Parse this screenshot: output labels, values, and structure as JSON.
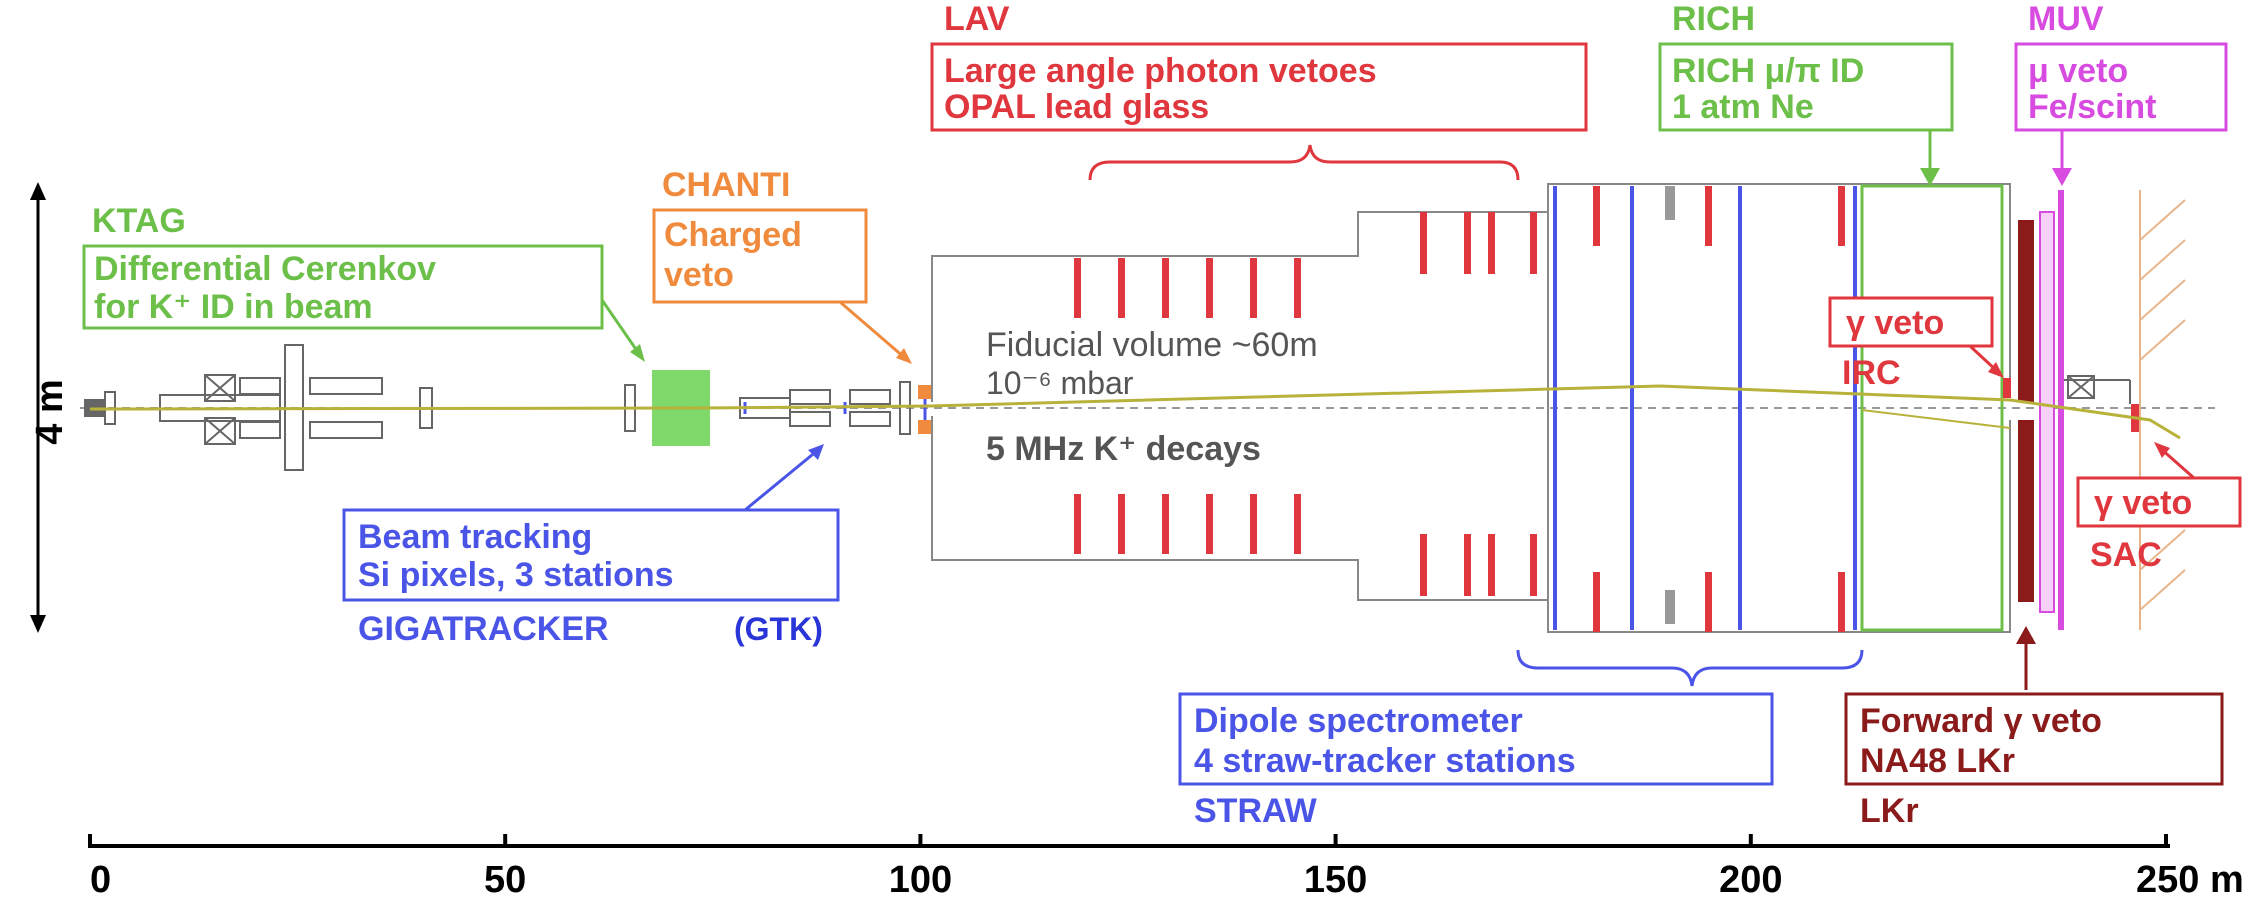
{
  "colors": {
    "green": "#6cc04a",
    "orange": "#f08a3c",
    "red": "#e0363d",
    "blue": "#4a55e8",
    "magenta": "#d84be0",
    "darkred": "#8b1a1a",
    "gray": "#555555",
    "beamline": "#b8b23a"
  },
  "vertical_scale": {
    "label": "4 m"
  },
  "labels": {
    "ktag": {
      "name": "KTAG",
      "line1": "Differential Cerenkov",
      "line2": "for K⁺ ID in beam"
    },
    "chanti": {
      "name": "CHANTI",
      "line1": "Charged",
      "line2": "veto"
    },
    "lav": {
      "name": "LAV",
      "line1": "Large angle photon vetoes",
      "line2": "OPAL lead glass"
    },
    "rich": {
      "name": "RICH",
      "line1": "RICH μ/π ID",
      "line2": "1 atm Ne"
    },
    "muv": {
      "name": "MUV",
      "line1": "μ veto",
      "line2": "Fe/scint"
    },
    "irc": {
      "box": "γ veto",
      "name": "IRC"
    },
    "sac": {
      "box": "γ veto",
      "name": "SAC"
    },
    "gtk": {
      "line1": "Beam tracking",
      "line2": "Si pixels, 3 stations",
      "name": "GIGATRACKER",
      "suffix": "(GTK)"
    },
    "straw": {
      "line1": "Dipole spectrometer",
      "line2": "4 straw-tracker stations",
      "name": "STRAW"
    },
    "lkr": {
      "line1": "Forward γ veto",
      "line2": "NA48 LKr",
      "name": "LKr"
    },
    "fiducial": {
      "line1": "Fiducial volume ~60m",
      "line2": "10⁻⁶ mbar",
      "line3": "5 MHz K⁺ decays"
    }
  },
  "axis": {
    "ticks": [
      {
        "value": 0,
        "label": "0"
      },
      {
        "value": 50,
        "label": "50"
      },
      {
        "value": 100,
        "label": "100"
      },
      {
        "value": 150,
        "label": "150"
      },
      {
        "value": 200,
        "label": "200"
      },
      {
        "value": 250,
        "label": "250 m"
      }
    ]
  }
}
